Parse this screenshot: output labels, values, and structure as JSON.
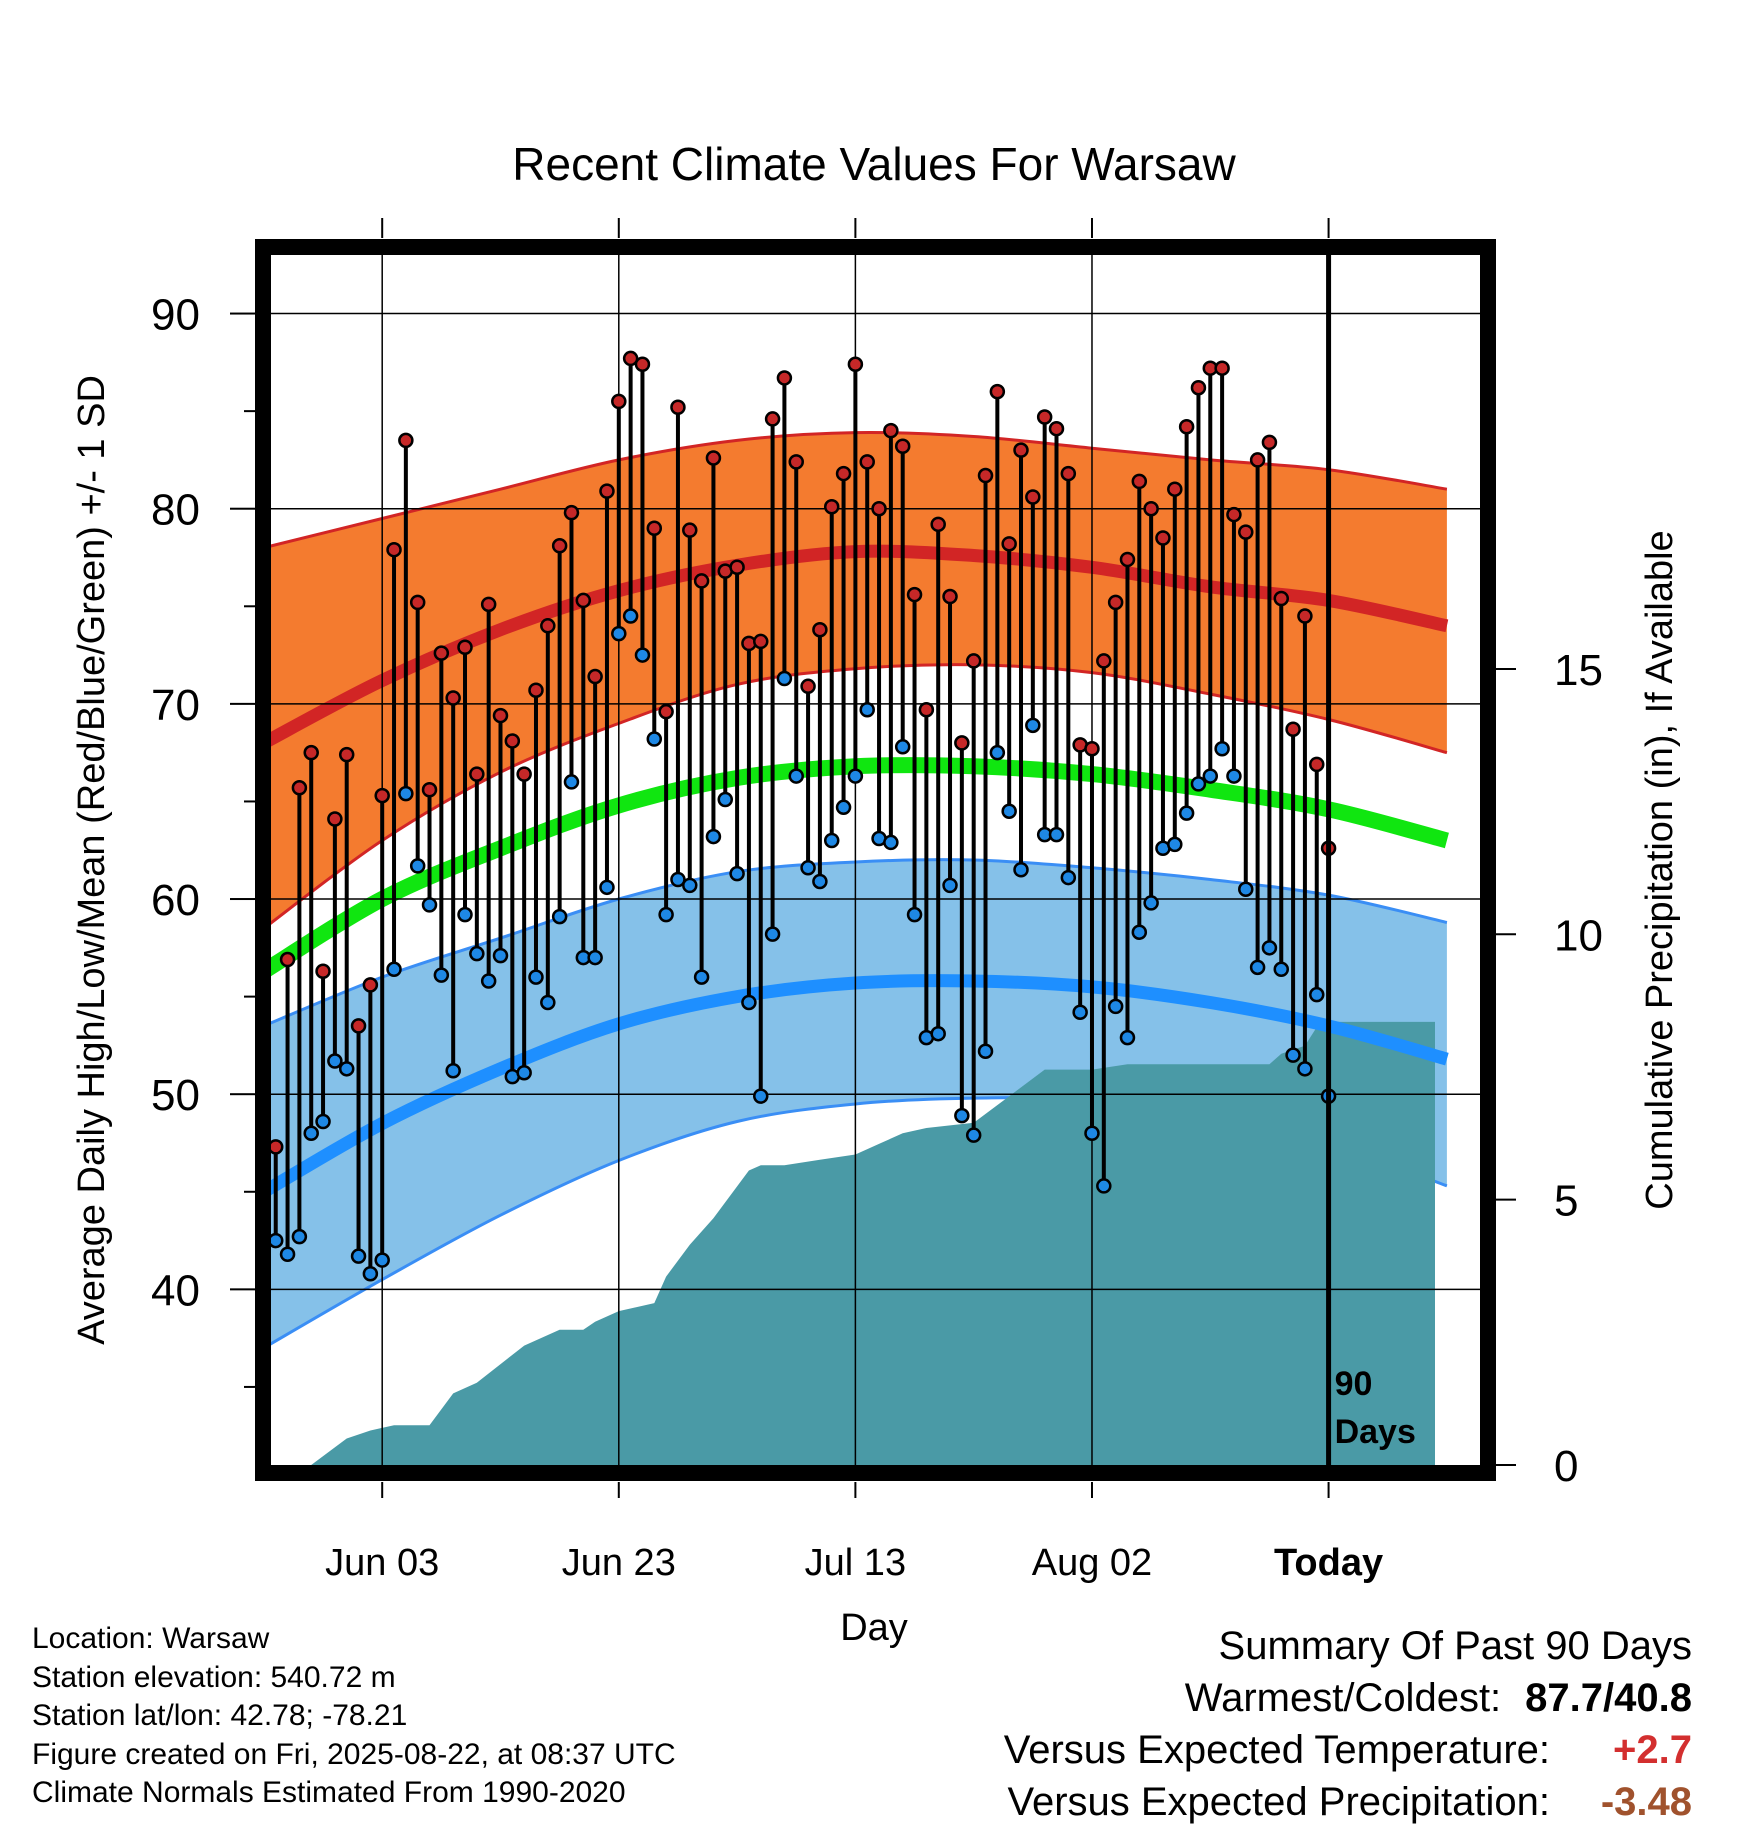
{
  "chart_data": {
    "type": "line",
    "title": "Recent Climate Values For Warsaw",
    "xlabel": "Day",
    "ylabel": "Average Daily High/Low/Mean (Red/Blue/Green) +/- 1 SD",
    "y2label": "Cumulative Precipitation (in), If Available",
    "ylim": [
      31,
      93
    ],
    "y2lim": [
      0,
      22.8
    ],
    "xlim": [
      -89.4,
      12.8
    ],
    "grid": true,
    "x_tick_labels": [
      "Jun 03",
      "Jun 23",
      "Jul 13",
      "Aug 02",
      "Today"
    ],
    "x_tick_days": [
      -80,
      -60,
      -40,
      -20,
      0
    ],
    "y_tick_labels": [
      "40",
      "50",
      "60",
      "70",
      "80",
      "90"
    ],
    "y_ticks": [
      40,
      50,
      60,
      70,
      80,
      90
    ],
    "y2_tick_labels": [
      "0",
      "5",
      "10",
      "15"
    ],
    "y2_ticks": [
      0,
      5,
      10,
      15
    ],
    "today_marker_label": "90 Days",
    "normals": {
      "days": [
        -90,
        -80,
        -70,
        -60,
        -50,
        -40,
        -30,
        -20,
        -10,
        0,
        10
      ],
      "high_mean": [
        68,
        71.2,
        73.8,
        75.8,
        77.1,
        77.8,
        77.6,
        77,
        76,
        75.3,
        74
      ],
      "high_upper": [
        78,
        79.5,
        81,
        82.5,
        83.5,
        83.9,
        83.7,
        83.1,
        82.5,
        82,
        81
      ],
      "high_lower": [
        58.5,
        63,
        66.5,
        69,
        71,
        71.8,
        72,
        71.6,
        70.5,
        69.2,
        67.5
      ],
      "avg_mean": [
        56.3,
        60,
        62.6,
        64.8,
        66.2,
        66.8,
        66.8,
        66.4,
        65.6,
        64.6,
        63
      ],
      "low_mean": [
        45,
        48.5,
        51.3,
        53.6,
        55,
        55.7,
        55.8,
        55.5,
        54.7,
        53.5,
        51.8
      ],
      "low_upper": [
        53.5,
        56,
        58,
        60,
        61.4,
        61.9,
        62,
        61.6,
        61,
        60.2,
        58.8
      ],
      "low_lower": [
        37,
        40.5,
        43.8,
        46.6,
        48.6,
        49.5,
        49.8,
        49.7,
        48.8,
        47.5,
        45.3
      ],
      "colors": {
        "high_band": "#f47b2f",
        "high_line": "#d22525",
        "avg_line": "#10e610",
        "low_band": "#85c1e9",
        "low_line": "#1e8fff",
        "low_band_edge": "#3a8ef5",
        "precip": "#4a9aa6"
      }
    },
    "series": [
      {
        "name": "Daily High",
        "color": "#c62828",
        "values": [
          47.3,
          56.9,
          65.7,
          67.5,
          56.3,
          64.1,
          67.4,
          53.5,
          55.6,
          65.3,
          77.9,
          83.5,
          75.2,
          65.6,
          72.6,
          70.3,
          72.9,
          66.4,
          75.1,
          69.4,
          68.1,
          66.4,
          70.7,
          74,
          78.1,
          79.8,
          75.3,
          71.4,
          80.9,
          85.5,
          87.7,
          87.4,
          79,
          69.6,
          85.2,
          78.9,
          76.3,
          82.6,
          76.8,
          77,
          73.1,
          73.2,
          84.6,
          86.7,
          82.4,
          70.9,
          73.8,
          80.1,
          81.8,
          87.4,
          82.4,
          80,
          84,
          83.2,
          75.6,
          69.7,
          79.2,
          75.5,
          68,
          72.2,
          81.7,
          86,
          78.2,
          83,
          80.6,
          84.7,
          84.1,
          81.8,
          67.9,
          67.7,
          72.2,
          75.2,
          77.4,
          81.4,
          80,
          78.5,
          81,
          84.2,
          86.2,
          87.2,
          87.2,
          79.7,
          78.8,
          82.5,
          83.4,
          75.4,
          68.7,
          74.5,
          66.9,
          62.6
        ]
      },
      {
        "name": "Daily Low",
        "color": "#1e88e5",
        "values": [
          42.5,
          41.8,
          42.7,
          48,
          48.6,
          51.7,
          51.3,
          41.7,
          40.8,
          41.5,
          56.4,
          65.4,
          61.7,
          59.7,
          56.1,
          51.2,
          59.2,
          57.2,
          55.8,
          57.1,
          50.9,
          51.1,
          56,
          54.7,
          59.1,
          66,
          57,
          57,
          60.6,
          73.6,
          74.5,
          72.5,
          68.2,
          59.2,
          61,
          60.7,
          56,
          63.2,
          65.1,
          61.3,
          54.7,
          49.9,
          58.2,
          71.3,
          66.3,
          61.6,
          60.9,
          63,
          64.7,
          66.3,
          69.7,
          63.1,
          62.9,
          67.8,
          59.2,
          52.9,
          53.1,
          60.7,
          48.9,
          47.9,
          52.2,
          67.5,
          64.5,
          61.5,
          68.9,
          63.3,
          63.3,
          61.1,
          54.2,
          48,
          45.3,
          54.5,
          52.9,
          58.3,
          59.8,
          62.6,
          62.8,
          64.4,
          65.9,
          66.3,
          67.7,
          66.3,
          60.5,
          56.5,
          57.5,
          56.4,
          52,
          51.3,
          55.1,
          49.9
        ]
      },
      {
        "name": "Cumulative Precipitation",
        "color": "#4a9aa6",
        "days": [
          -89,
          -86,
          -83,
          -81,
          -79,
          -76,
          -74,
          -72,
          -68,
          -65,
          -63,
          -62,
          -60,
          -57,
          -56,
          -54,
          -52,
          -50,
          -49,
          -48,
          -46,
          -43,
          -40,
          -38,
          -36,
          -34,
          -30,
          -27,
          -24,
          -20,
          -17,
          -15,
          -12,
          -9,
          -7,
          -5,
          -4,
          -2,
          -1,
          0,
          9
        ],
        "values": [
          0,
          0,
          0.5,
          0.65,
          0.75,
          0.75,
          1.35,
          1.55,
          2.25,
          2.55,
          2.55,
          2.7,
          2.9,
          3.05,
          3.55,
          4.15,
          4.65,
          5.25,
          5.55,
          5.65,
          5.65,
          5.75,
          5.85,
          6.05,
          6.25,
          6.35,
          6.45,
          6.95,
          7.45,
          7.45,
          7.55,
          7.55,
          7.55,
          7.55,
          7.55,
          7.55,
          7.75,
          7.9,
          8.25,
          8.35,
          8.35
        ]
      }
    ]
  },
  "info": {
    "location": "Location: Warsaw",
    "elevation": "Station elevation: 540.72 m",
    "latlon": "Station lat/lon: 42.78; -78.21",
    "created": "Figure created on Fri, 2025-08-22, at 08:37 UTC",
    "normals": "Climate Normals Estimated From 1990-2020"
  },
  "summary": {
    "title": "Summary Of Past 90 Days",
    "warm_cold_label": "Warmest/Coldest:",
    "warm_cold_value": "87.7/40.8",
    "temp_label": "Versus Expected Temperature:",
    "temp_value": "+2.7",
    "temp_color": "#d32f2f",
    "precip_label": "Versus Expected Precipitation:",
    "precip_value": "-3.48",
    "precip_color": "#a0522d"
  }
}
